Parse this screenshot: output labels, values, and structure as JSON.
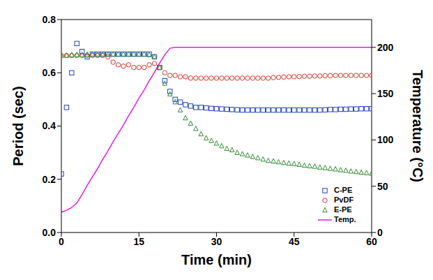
{
  "chart_data": {
    "type": "scatter",
    "x_label": "Time (min)",
    "y_label": "Period (sec)",
    "y2_label": "Temperature (°C)",
    "xlim": [
      0,
      60
    ],
    "xticks": [
      0,
      15,
      30,
      45,
      60
    ],
    "ylim": [
      0,
      0.8
    ],
    "yticks": [
      {
        "value": 0,
        "label": "0.0"
      },
      0.2,
      0.4,
      0.6,
      0.8
    ],
    "y2lim": [
      0,
      230
    ],
    "y2ticks": [
      0,
      50,
      100,
      150,
      200
    ],
    "legend": "lower right",
    "grid": false,
    "x": [
      0,
      1,
      2,
      3,
      4,
      5,
      6,
      7,
      8,
      9,
      10,
      11,
      12,
      13,
      14,
      15,
      16,
      17,
      18,
      19,
      20,
      21,
      22,
      23,
      24,
      25,
      26,
      27,
      28,
      29,
      30,
      31,
      32,
      33,
      34,
      35,
      36,
      37,
      38,
      39,
      40,
      41,
      42,
      43,
      44,
      45,
      46,
      47,
      48,
      49,
      50,
      51,
      52,
      53,
      54,
      55,
      56,
      57,
      58,
      59,
      60
    ],
    "series": [
      {
        "name": "C-PE",
        "color": "#2040c0",
        "marker": "square",
        "values": [
          0.22,
          0.47,
          0.6,
          0.71,
          0.68,
          0.66,
          0.67,
          0.67,
          0.67,
          0.67,
          0.67,
          0.67,
          0.67,
          0.67,
          0.67,
          0.67,
          0.67,
          0.67,
          0.66,
          0.62,
          0.57,
          0.53,
          0.5,
          0.49,
          0.48,
          0.475,
          0.47,
          0.47,
          0.468,
          0.466,
          0.465,
          0.464,
          0.463,
          0.462,
          0.461,
          0.46,
          0.46,
          0.46,
          0.46,
          0.46,
          0.46,
          0.46,
          0.46,
          0.46,
          0.46,
          0.46,
          0.46,
          0.46,
          0.46,
          0.46,
          0.46,
          0.461,
          0.462,
          0.462,
          0.463,
          0.463,
          0.464,
          0.464,
          0.465,
          0.465,
          0.465
        ]
      },
      {
        "name": "PvDF",
        "color": "#e0302a",
        "marker": "circle",
        "values": [
          0.665,
          0.665,
          0.665,
          0.665,
          0.665,
          0.665,
          0.665,
          0.665,
          0.665,
          0.66,
          0.64,
          0.63,
          0.625,
          0.63,
          0.62,
          0.62,
          0.62,
          0.63,
          0.635,
          0.62,
          0.6,
          0.59,
          0.59,
          0.585,
          0.585,
          0.58,
          0.58,
          0.58,
          0.58,
          0.58,
          0.58,
          0.58,
          0.58,
          0.58,
          0.58,
          0.58,
          0.58,
          0.58,
          0.58,
          0.58,
          0.58,
          0.582,
          0.583,
          0.584,
          0.585,
          0.585,
          0.586,
          0.587,
          0.587,
          0.588,
          0.588,
          0.589,
          0.589,
          0.59,
          0.59,
          0.59,
          0.59,
          0.59,
          0.59,
          0.59,
          0.59
        ]
      },
      {
        "name": "E-PE",
        "color": "#2e8b2e",
        "marker": "triangle",
        "values": [
          0.665,
          0.665,
          0.667,
          0.668,
          0.668,
          0.669,
          0.67,
          0.67,
          0.67,
          0.67,
          0.67,
          0.67,
          0.67,
          0.67,
          0.67,
          0.67,
          0.67,
          0.668,
          0.66,
          0.62,
          0.56,
          0.52,
          0.49,
          0.46,
          0.43,
          0.41,
          0.39,
          0.37,
          0.355,
          0.345,
          0.335,
          0.325,
          0.315,
          0.31,
          0.3,
          0.295,
          0.29,
          0.285,
          0.28,
          0.275,
          0.27,
          0.268,
          0.265,
          0.262,
          0.26,
          0.258,
          0.255,
          0.252,
          0.25,
          0.248,
          0.245,
          0.243,
          0.24,
          0.238,
          0.235,
          0.233,
          0.23,
          0.228,
          0.226,
          0.224,
          0.222
        ]
      },
      {
        "name": "Temp.",
        "type": "line",
        "axis": "y2",
        "color": "#e619e6",
        "marker": "none",
        "line_style": "solid",
        "values": [
          22,
          24,
          27,
          32,
          41,
          51,
          60,
          69,
          79,
          88,
          98,
          107,
          116,
          126,
          135,
          145,
          154,
          164,
          173,
          183,
          192,
          199,
          200,
          200,
          200,
          200,
          200,
          200,
          200,
          200,
          200,
          200,
          200,
          200,
          200,
          200,
          200,
          200,
          200,
          200,
          200,
          200,
          200,
          200,
          200,
          200,
          200,
          200,
          200,
          200,
          200,
          200,
          200,
          200,
          200,
          200,
          200,
          200,
          200,
          200,
          200
        ]
      }
    ]
  }
}
